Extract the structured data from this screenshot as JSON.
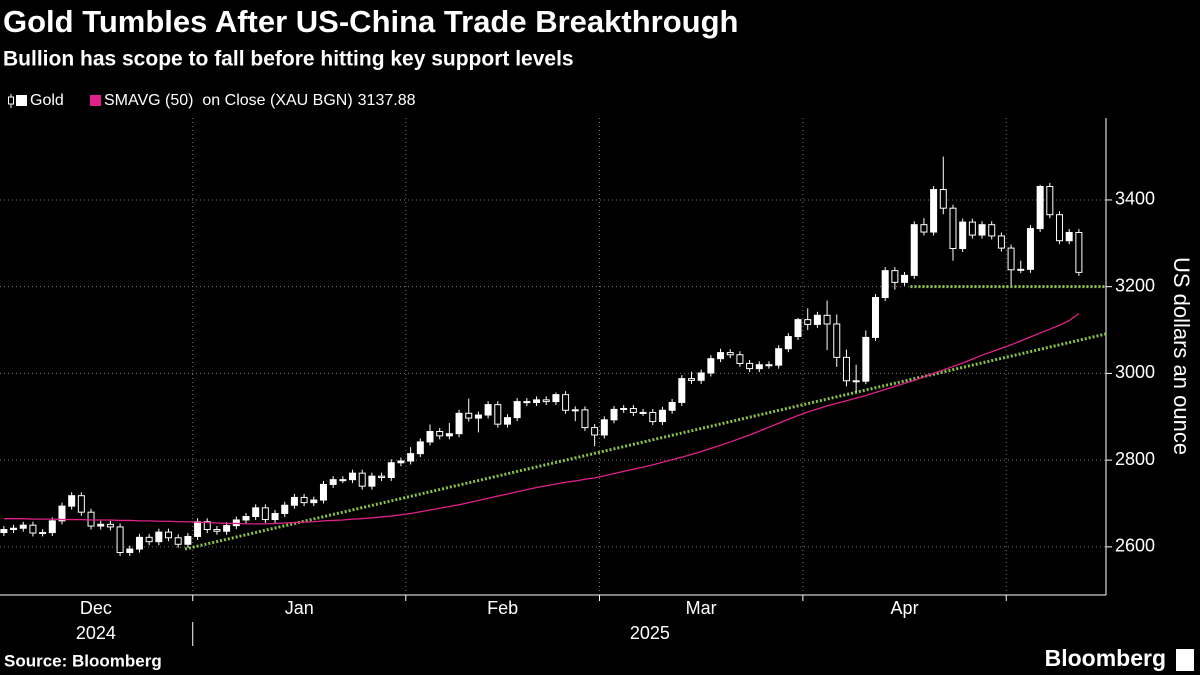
{
  "chart_data": {
    "type": "candlestick",
    "title": "Gold Tumbles After US-China Trade Breakthrough",
    "subtitle": "Bullion has scope to fall before hitting key support levels",
    "y_label": "US dollars an ounce",
    "source": "Source: Bloomberg",
    "brand": "Bloomberg",
    "xlim": [
      -0.4,
      113.8
    ],
    "ylim": [
      2489,
      3589
    ],
    "yticks": [
      2600,
      2800,
      3000,
      3200,
      3400
    ],
    "xticks": [
      {
        "value": 9.5,
        "label": "Dec"
      },
      {
        "value": 30.5,
        "label": "Jan"
      },
      {
        "value": 51.5,
        "label": "Feb"
      },
      {
        "value": 72,
        "label": "Mar"
      },
      {
        "value": 93,
        "label": "Apr"
      }
    ],
    "xgrid": [
      19.5,
      41.5,
      61.5,
      82.5,
      103.5
    ],
    "years": [
      {
        "value": 9.5,
        "label": "2024"
      },
      {
        "value": 66.7,
        "label": "2025"
      }
    ],
    "grid": true,
    "series": [
      {
        "name": "Gold",
        "color": "#ffffff",
        "open": [
          2633,
          2640,
          2643,
          2650,
          2632,
          2633,
          2660,
          2694,
          2718,
          2680,
          2648,
          2652,
          2646,
          2587,
          2595,
          2622,
          2612,
          2634,
          2621,
          2606,
          2624,
          2658,
          2640,
          2636,
          2649,
          2662,
          2670,
          2690,
          2663,
          2677,
          2696,
          2714,
          2702,
          2708,
          2744,
          2755,
          2755,
          2770,
          2740,
          2763,
          2760,
          2794,
          2798,
          2815,
          2842,
          2866,
          2856,
          2861,
          2908,
          2897,
          2904,
          2928,
          2883,
          2898,
          2935,
          2933,
          2939,
          2935,
          2951,
          2915,
          2916,
          2875,
          2858,
          2893,
          2917,
          2919,
          2910,
          2910,
          2889,
          2915,
          2933,
          2988,
          2984,
          3001,
          3034,
          3048,
          3043,
          3023,
          3011,
          3020,
          3019,
          3057,
          3085,
          3124,
          3113,
          3134,
          3114,
          3037,
          2983,
          2982,
          3083,
          3175,
          3237,
          3210,
          3226,
          3343,
          3326,
          3424,
          3381,
          3288,
          3349,
          3319,
          3343,
          3317,
          3289,
          3239,
          3240,
          3334,
          3431,
          3366,
          3306,
          3325
        ],
        "high": [
          2648,
          2651,
          2658,
          2658,
          2641,
          2668,
          2702,
          2726,
          2726,
          2688,
          2660,
          2660,
          2654,
          2603,
          2630,
          2630,
          2642,
          2642,
          2629,
          2632,
          2666,
          2666,
          2648,
          2657,
          2670,
          2678,
          2698,
          2698,
          2685,
          2704,
          2722,
          2722,
          2716,
          2752,
          2763,
          2763,
          2778,
          2778,
          2771,
          2771,
          2802,
          2806,
          2830,
          2850,
          2882,
          2874,
          2886,
          2916,
          2942,
          2912,
          2936,
          2936,
          2906,
          2943,
          2943,
          2947,
          2947,
          2956,
          2959,
          2924,
          2924,
          2883,
          2901,
          2925,
          2927,
          2927,
          2918,
          2918,
          2923,
          2941,
          2996,
          3004,
          3009,
          3042,
          3057,
          3056,
          3051,
          3031,
          3028,
          3028,
          3065,
          3093,
          3128,
          3150,
          3142,
          3168,
          3136,
          3055,
          3020,
          3099,
          3183,
          3245,
          3245,
          3234,
          3351,
          3358,
          3432,
          3500,
          3389,
          3357,
          3357,
          3351,
          3351,
          3325,
          3297,
          3260,
          3342,
          3435,
          3439,
          3374,
          3333,
          3333
        ],
        "low": [
          2625,
          2632,
          2635,
          2624,
          2624,
          2625,
          2652,
          2686,
          2672,
          2640,
          2640,
          2638,
          2579,
          2579,
          2587,
          2604,
          2604,
          2613,
          2598,
          2598,
          2616,
          2632,
          2628,
          2628,
          2641,
          2654,
          2662,
          2655,
          2655,
          2669,
          2688,
          2694,
          2694,
          2700,
          2736,
          2747,
          2747,
          2732,
          2732,
          2752,
          2752,
          2786,
          2790,
          2807,
          2834,
          2848,
          2848,
          2853,
          2889,
          2864,
          2896,
          2875,
          2875,
          2890,
          2925,
          2925,
          2927,
          2927,
          2907,
          2890,
          2867,
          2832,
          2850,
          2885,
          2909,
          2902,
          2902,
          2881,
          2881,
          2907,
          2925,
          2976,
          2976,
          2993,
          3026,
          3035,
          3015,
          3003,
          3003,
          3011,
          3011,
          3049,
          3077,
          3100,
          3105,
          3054,
          3015,
          2970,
          2957,
          2975,
          3075,
          3167,
          3193,
          3202,
          3218,
          3318,
          3318,
          3367,
          3260,
          3280,
          3311,
          3311,
          3309,
          3281,
          3203,
          3231,
          3232,
          3326,
          3358,
          3298,
          3298,
          3225
        ],
        "close": [
          2640,
          2643,
          2650,
          2632,
          2633,
          2660,
          2694,
          2718,
          2680,
          2648,
          2652,
          2646,
          2587,
          2595,
          2622,
          2612,
          2634,
          2621,
          2606,
          2624,
          2658,
          2640,
          2636,
          2649,
          2662,
          2670,
          2690,
          2663,
          2677,
          2696,
          2714,
          2702,
          2708,
          2744,
          2755,
          2755,
          2770,
          2740,
          2763,
          2760,
          2794,
          2798,
          2815,
          2842,
          2866,
          2856,
          2861,
          2908,
          2897,
          2904,
          2928,
          2883,
          2898,
          2935,
          2933,
          2939,
          2935,
          2951,
          2915,
          2916,
          2875,
          2858,
          2893,
          2917,
          2919,
          2910,
          2910,
          2889,
          2915,
          2933,
          2988,
          2984,
          3001,
          3034,
          3048,
          3043,
          3023,
          3011,
          3020,
          3019,
          3057,
          3085,
          3124,
          3113,
          3134,
          3114,
          3037,
          2983,
          2982,
          3083,
          3175,
          3237,
          3210,
          3226,
          3343,
          3326,
          3424,
          3381,
          3288,
          3349,
          3319,
          3343,
          3317,
          3289,
          3239,
          3240,
          3334,
          3431,
          3366,
          3306,
          3325,
          3233
        ]
      },
      {
        "name": "SMAVG (50)  on Close (XAU BGN)",
        "color": "#e0218a",
        "values": [
          2665,
          2665,
          2665,
          2664,
          2664,
          2664,
          2663,
          2663,
          2663,
          2662,
          2662,
          2662,
          2661,
          2661,
          2660,
          2660,
          2659,
          2659,
          2658,
          2658,
          2657,
          2656,
          2655,
          2654,
          2654,
          2653,
          2653,
          2653,
          2654,
          2655,
          2656,
          2657,
          2658,
          2660,
          2661,
          2662,
          2664,
          2665,
          2667,
          2669,
          2671,
          2674,
          2677,
          2681,
          2685,
          2689,
          2693,
          2697,
          2702,
          2707,
          2712,
          2717,
          2722,
          2727,
          2732,
          2737,
          2741,
          2745,
          2749,
          2752,
          2756,
          2759,
          2764,
          2769,
          2774,
          2779,
          2784,
          2789,
          2795,
          2801,
          2807,
          2813,
          2820,
          2827,
          2834,
          2842,
          2850,
          2858,
          2867,
          2876,
          2885,
          2894,
          2903,
          2911,
          2918,
          2925,
          2931,
          2937,
          2943,
          2949,
          2956,
          2963,
          2970,
          2977,
          2984,
          2992,
          3000,
          3008,
          3016,
          3024,
          3033,
          3042,
          3050,
          3058,
          3066,
          3075,
          3084,
          3093,
          3102,
          3111,
          3122,
          3137.88
        ]
      }
    ],
    "trendlines": [
      {
        "color": "#8bc34a",
        "x": [
          18.7,
          113.8
        ],
        "y": [
          2595,
          3091
        ]
      },
      {
        "color": "#8bc34a",
        "x": [
          93.6,
          113.8
        ],
        "y": [
          3200,
          3200
        ]
      }
    ]
  }
}
